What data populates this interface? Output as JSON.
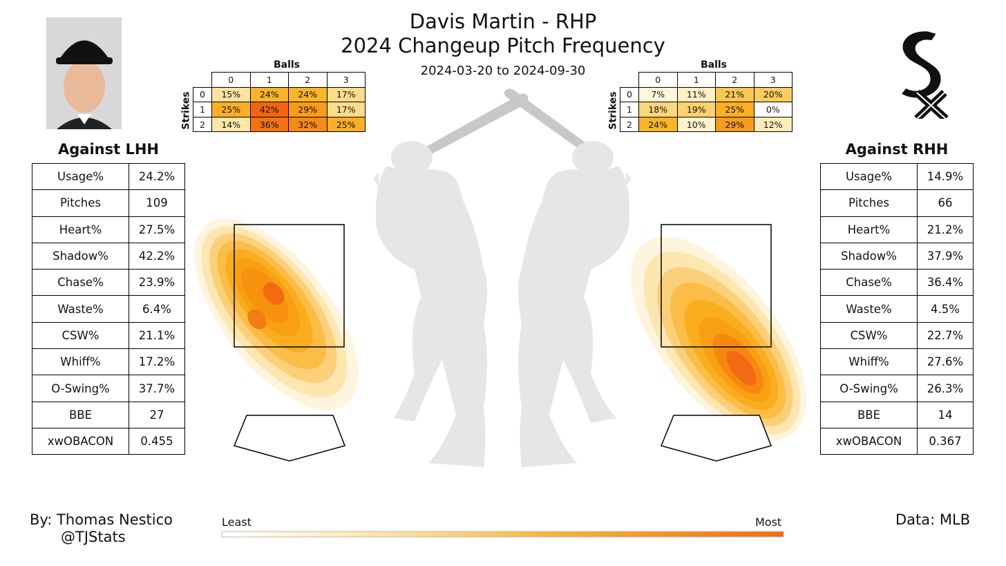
{
  "header": {
    "title_line1": "Davis Martin - RHP",
    "title_line2": "2024 Changeup Pitch Frequency",
    "date_range": "2024-03-20 to 2024-09-30"
  },
  "lhh": {
    "title": "Against LHH",
    "stats": [
      {
        "label": "Usage%",
        "value": "24.2%"
      },
      {
        "label": "Pitches",
        "value": "109"
      },
      {
        "label": "Heart%",
        "value": "27.5%"
      },
      {
        "label": "Shadow%",
        "value": "42.2%"
      },
      {
        "label": "Chase%",
        "value": "23.9%"
      },
      {
        "label": "Waste%",
        "value": "6.4%"
      },
      {
        "label": "CSW%",
        "value": "21.1%"
      },
      {
        "label": "Whiff%",
        "value": "17.2%"
      },
      {
        "label": "O-Swing%",
        "value": "37.7%"
      },
      {
        "label": "BBE",
        "value": "27"
      },
      {
        "label": "xwOBACON",
        "value": "0.455"
      }
    ]
  },
  "rhh": {
    "title": "Against RHH",
    "stats": [
      {
        "label": "Usage%",
        "value": "14.9%"
      },
      {
        "label": "Pitches",
        "value": "66"
      },
      {
        "label": "Heart%",
        "value": "21.2%"
      },
      {
        "label": "Shadow%",
        "value": "37.9%"
      },
      {
        "label": "Chase%",
        "value": "36.4%"
      },
      {
        "label": "Waste%",
        "value": "4.5%"
      },
      {
        "label": "CSW%",
        "value": "22.7%"
      },
      {
        "label": "Whiff%",
        "value": "27.6%"
      },
      {
        "label": "O-Swing%",
        "value": "26.3%"
      },
      {
        "label": "BBE",
        "value": "14"
      },
      {
        "label": "xwOBACON",
        "value": "0.367"
      }
    ]
  },
  "chart_data": [
    {
      "type": "table",
      "name": "count-grid-lhh",
      "col_label": "Balls",
      "row_label": "Strikes",
      "cols": [
        "0",
        "1",
        "2",
        "3"
      ],
      "rows": [
        "0",
        "1",
        "2"
      ],
      "cells": [
        [
          "15%",
          "24%",
          "24%",
          "17%"
        ],
        [
          "25%",
          "42%",
          "29%",
          "17%"
        ],
        [
          "14%",
          "36%",
          "32%",
          "25%"
        ]
      ],
      "values": [
        [
          15,
          24,
          24,
          17
        ],
        [
          25,
          42,
          29,
          17
        ],
        [
          14,
          36,
          32,
          25
        ]
      ]
    },
    {
      "type": "table",
      "name": "count-grid-rhh",
      "col_label": "Balls",
      "row_label": "Strikes",
      "cols": [
        "0",
        "1",
        "2",
        "3"
      ],
      "rows": [
        "0",
        "1",
        "2"
      ],
      "cells": [
        [
          "7%",
          "11%",
          "21%",
          "20%"
        ],
        [
          "18%",
          "19%",
          "25%",
          "0%"
        ],
        [
          "24%",
          "10%",
          "29%",
          "12%"
        ]
      ],
      "values": [
        [
          7,
          11,
          21,
          20
        ],
        [
          18,
          19,
          25,
          0
        ],
        [
          24,
          10,
          29,
          12
        ]
      ]
    },
    {
      "type": "heatmap",
      "name": "location-density-lhh",
      "legend": {
        "low_label": "Least",
        "high_label": "Most"
      }
    },
    {
      "type": "heatmap",
      "name": "location-density-rhh",
      "legend": {
        "low_label": "Least",
        "high_label": "Most"
      }
    }
  ],
  "colors": {
    "scale_low": "#ffffff",
    "scale_mid": "#f6b73c",
    "scale_high": "#f26b12",
    "silhouette": "#e6e6e6",
    "bat": "#c8c8c8"
  },
  "footer": {
    "by_line1": "By: Thomas Nestico",
    "by_line2": "@TJStats",
    "data_source": "Data: MLB"
  },
  "icons": {
    "headshot": "player-headshot",
    "logo": "white-sox-logo-icon"
  }
}
